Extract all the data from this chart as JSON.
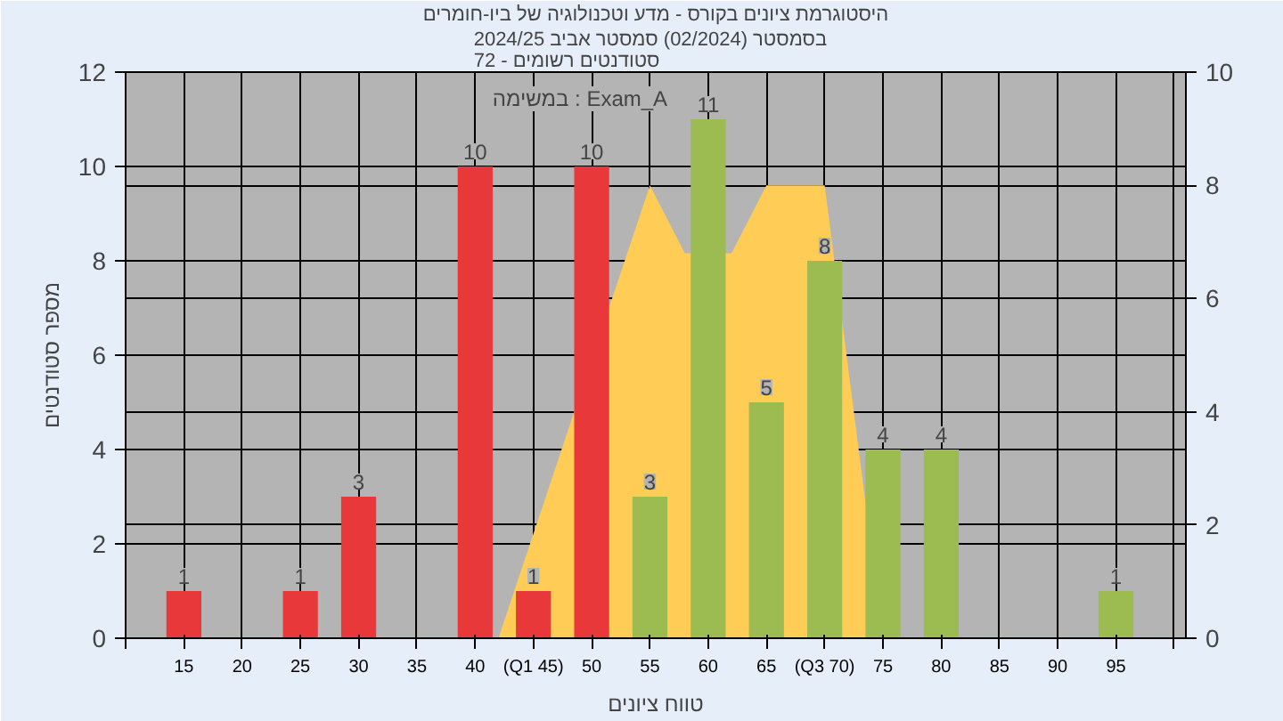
{
  "chart_data": {
    "type": "bar",
    "title": "היסטוגרמת ציונים בקורס - מדע וטכנולוגיה של ביו-חומרים",
    "subtitle": "בסמסטר  (02/2024)  סמסטר אביב 2024/25\nסטודנטים רשומים - 72",
    "xlabel": "טווח ציונים",
    "ylabel": "מספר סטודנטים",
    "annotations": [
      "במשימה : Exam_A"
    ],
    "x": [
      15,
      25,
      30,
      40,
      45,
      50,
      55,
      60,
      65,
      70,
      75,
      80,
      95
    ],
    "series": [
      {
        "values": [
          1,
          1,
          3,
          10,
          1,
          10,
          3,
          11,
          5,
          8,
          4,
          4,
          1
        ],
        "colors": [
          "#e8383a",
          "#e8383a",
          "#e8383a",
          "#e8383a",
          "#e8383a",
          "#e8383a",
          "#9cbb50",
          "#9cbb50",
          "#9cbb50",
          "#9cbb50",
          "#9cbb50",
          "#9cbb50",
          "#9cbb50"
        ],
        "value_labels": [
          "1",
          "1",
          "3",
          "10",
          "1",
          "10",
          "3",
          "11",
          "5",
          "8",
          "4",
          "4",
          "1"
        ]
      },
      {
        "type": "area",
        "axis": "y2",
        "color": "#ffcc55",
        "x": [
          42,
          55,
          58,
          62,
          65,
          70,
          75
        ],
        "values": [
          0,
          8,
          6.8,
          6.8,
          8,
          8,
          0
        ]
      }
    ],
    "xlim": [
      10,
      101
    ],
    "ylim": [
      0,
      12
    ],
    "y2lim": [
      0,
      10
    ],
    "xticks": [
      {
        "value": 10,
        "label": null
      },
      15,
      20,
      25,
      30,
      35,
      40,
      {
        "value": 45,
        "label": "(Q1 45)"
      },
      50,
      55,
      60,
      65,
      {
        "value": 70,
        "label": "(Q3 70)"
      },
      75,
      80,
      85,
      90,
      95,
      {
        "value": 100,
        "label": null
      }
    ],
    "yticks": [
      0,
      2,
      4,
      6,
      8,
      10,
      12
    ],
    "y2ticks": [
      0,
      2,
      4,
      6,
      8,
      10
    ],
    "grid": true
  }
}
